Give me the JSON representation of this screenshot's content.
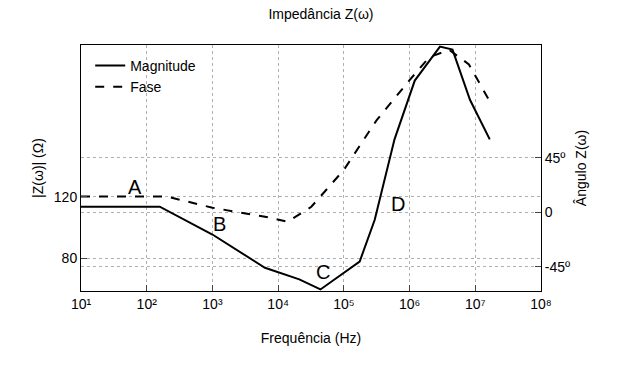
{
  "chart_data": {
    "type": "line",
    "title": "Impedância Z(ω)",
    "x_label": "Frequência (Hz)",
    "y_label": "|Z(ω)| (Ω)",
    "y2_label": "Ângulo Z(ω)",
    "log": "x",
    "grid": true,
    "legend": "upper left",
    "xlim": [
      10,
      100000000
    ],
    "xticks": [
      {
        "value": 10,
        "label": "10¹"
      },
      {
        "value": 100,
        "label": "10²"
      },
      {
        "value": 1000,
        "label": "10³"
      },
      {
        "value": 10000,
        "label": "10⁴"
      },
      {
        "value": 100000,
        "label": "10⁵"
      },
      {
        "value": 1000000,
        "label": "10⁶"
      },
      {
        "value": 10000000,
        "label": "10⁷"
      },
      {
        "value": 100000000,
        "label": "10⁸"
      }
    ],
    "ylim": [
      59,
      218
    ],
    "yticks": [
      80,
      120
    ],
    "y2lim": [
      -65,
      138
    ],
    "y2ticks": [
      {
        "value": -45,
        "label": "-45º"
      },
      0,
      {
        "value": 45,
        "label": "45º"
      }
    ],
    "series": [
      {
        "name": "Magnitude",
        "color": "#000000",
        "line_style": "solid",
        "x": [
          10,
          158,
          1000,
          6300,
          21000,
          44000,
          174000,
          295000,
          590000,
          1200000,
          2900000,
          4500000,
          8300000,
          16600000
        ],
        "values": [
          113.5,
          113.5,
          95.5,
          74,
          66.5,
          60,
          78,
          105,
          157,
          195,
          217,
          215,
          182.6,
          157
        ]
      },
      {
        "name": "Fase",
        "color": "#000000",
        "line_style": "dashed",
        "axis": "y2",
        "x": [
          10,
          200,
          1000,
          6300,
          14000,
          32000,
          100000,
          316000,
          1000000,
          2000000,
          4000000,
          8000000,
          16000000
        ],
        "values": [
          13,
          13,
          3.7,
          -3.7,
          -7.8,
          4.5,
          35,
          76,
          109,
          128,
          134,
          122,
          93
        ]
      }
    ],
    "annotations": [
      {
        "text": "A",
        "x": 66,
        "y": 126.5
      },
      {
        "text": "B",
        "x": 1260,
        "y": 102.6
      },
      {
        "text": "C",
        "x": 48000,
        "y": 71.6
      },
      {
        "text": "D",
        "x": 660000,
        "y": 115
      }
    ]
  }
}
